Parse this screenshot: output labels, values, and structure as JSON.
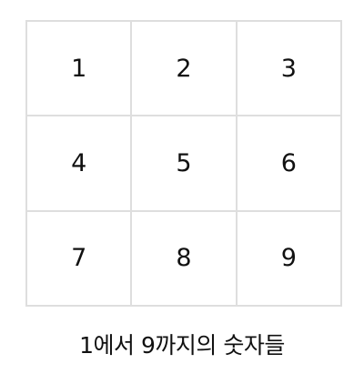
{
  "grid": {
    "cells": [
      "1",
      "2",
      "3",
      "4",
      "5",
      "6",
      "7",
      "8",
      "9"
    ]
  },
  "caption": "1에서 9까지의 숫자들"
}
